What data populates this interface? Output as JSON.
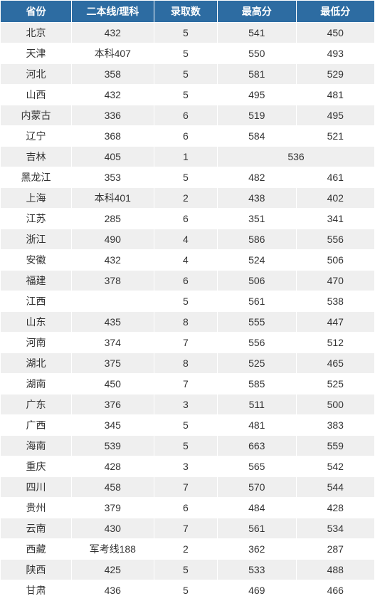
{
  "table": {
    "header_bg": "#2d6ca2",
    "header_color": "#ffffff",
    "row_odd_bg": "#efefef",
    "row_even_bg": "#ffffff",
    "text_color": "#333333",
    "columns": [
      {
        "key": "province",
        "label": "省份"
      },
      {
        "key": "line",
        "label": "二本线/理科"
      },
      {
        "key": "count",
        "label": "录取数"
      },
      {
        "key": "high",
        "label": "最高分"
      },
      {
        "key": "low",
        "label": "最低分"
      }
    ],
    "rows": [
      {
        "province": "北京",
        "line": "432",
        "count": "5",
        "high": "541",
        "low": "450"
      },
      {
        "province": "天津",
        "line": "本科407",
        "count": "5",
        "high": "550",
        "low": "493"
      },
      {
        "province": "河北",
        "line": "358",
        "count": "5",
        "high": "581",
        "low": "529"
      },
      {
        "province": "山西",
        "line": "432",
        "count": "5",
        "high": "495",
        "low": "481"
      },
      {
        "province": "内蒙古",
        "line": "336",
        "count": "6",
        "high": "519",
        "low": "495"
      },
      {
        "province": "辽宁",
        "line": "368",
        "count": "6",
        "high": "584",
        "low": "521"
      },
      {
        "province": "吉林",
        "line": "405",
        "count": "1",
        "merged": "536"
      },
      {
        "province": "黑龙江",
        "line": "353",
        "count": "5",
        "high": "482",
        "low": "461"
      },
      {
        "province": "上海",
        "line": "本科401",
        "count": "2",
        "high": "438",
        "low": "402"
      },
      {
        "province": "江苏",
        "line": "285",
        "count": "6",
        "high": "351",
        "low": "341"
      },
      {
        "province": "浙江",
        "line": "490",
        "count": "4",
        "high": "586",
        "low": "556"
      },
      {
        "province": "安徽",
        "line": "432",
        "count": "4",
        "high": "524",
        "low": "506"
      },
      {
        "province": "福建",
        "line": "378",
        "count": "6",
        "high": "506",
        "low": "470"
      },
      {
        "province": "江西",
        "line": "",
        "count": "5",
        "high": "561",
        "low": "538"
      },
      {
        "province": "山东",
        "line": "435",
        "count": "8",
        "high": "555",
        "low": "447"
      },
      {
        "province": "河南",
        "line": "374",
        "count": "7",
        "high": "556",
        "low": "512"
      },
      {
        "province": "湖北",
        "line": "375",
        "count": "8",
        "high": "525",
        "low": "465"
      },
      {
        "province": "湖南",
        "line": "450",
        "count": "7",
        "high": "585",
        "low": "525"
      },
      {
        "province": "广东",
        "line": "376",
        "count": "3",
        "high": "511",
        "low": "500"
      },
      {
        "province": "广西",
        "line": "345",
        "count": "5",
        "high": "481",
        "low": "383"
      },
      {
        "province": "海南",
        "line": "539",
        "count": "5",
        "high": "663",
        "low": "559"
      },
      {
        "province": "重庆",
        "line": "428",
        "count": "3",
        "high": "565",
        "low": "542"
      },
      {
        "province": "四川",
        "line": "458",
        "count": "7",
        "high": "570",
        "low": "544"
      },
      {
        "province": "贵州",
        "line": "379",
        "count": "6",
        "high": "484",
        "low": "428"
      },
      {
        "province": "云南",
        "line": "430",
        "count": "7",
        "high": "561",
        "low": "534"
      },
      {
        "province": "西藏",
        "line": "军考线188",
        "count": "2",
        "high": "362",
        "low": "287"
      },
      {
        "province": "陕西",
        "line": "425",
        "count": "5",
        "high": "533",
        "low": "488"
      },
      {
        "province": "甘肃",
        "line": "436",
        "count": "5",
        "high": "469",
        "low": "466"
      }
    ]
  }
}
